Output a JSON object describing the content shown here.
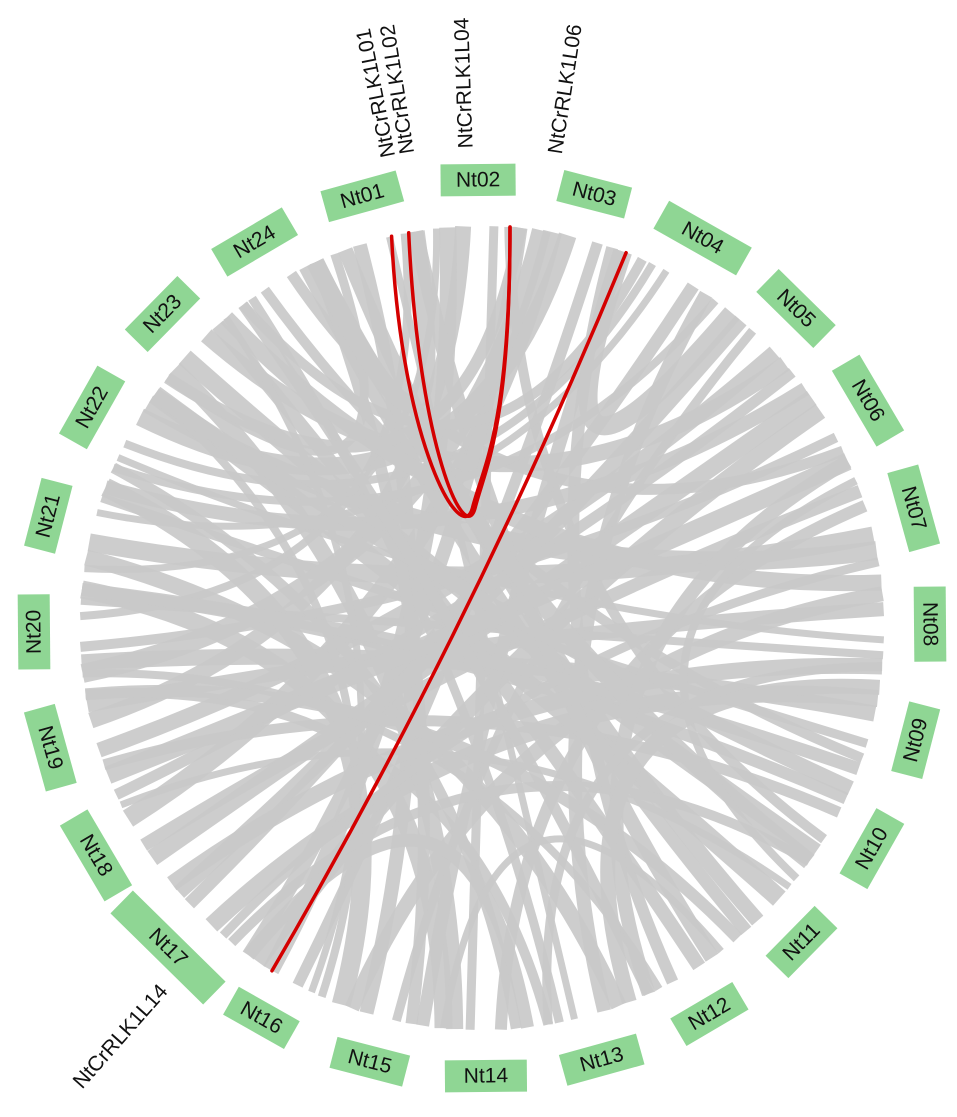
{
  "chart_data": {
    "type": "circos",
    "colors": {
      "chromosome": "#8fd694",
      "collinear_block": "#c9c9c9",
      "highlight_link": "#d40000"
    },
    "chromosomes": [
      "Nt01",
      "Nt02",
      "Nt03",
      "Nt04",
      "Nt05",
      "Nt06",
      "Nt07",
      "Nt08",
      "Nt09",
      "Nt10",
      "Nt11",
      "Nt12",
      "Nt13",
      "Nt14",
      "Nt15",
      "Nt16",
      "Nt17",
      "Nt18",
      "Nt19",
      "Nt20",
      "Nt21",
      "Nt22",
      "Nt23",
      "Nt24"
    ],
    "gene_labels": [
      {
        "text": "NtCrRLK1L01",
        "chromosome": "Nt01"
      },
      {
        "text": "NtCrRLK1L02",
        "chromosome": "Nt01"
      },
      {
        "text": "NtCrRLK1L04",
        "chromosome": "Nt02"
      },
      {
        "text": "NtCrRLK1L06",
        "chromosome": "Nt03"
      },
      {
        "text": "NtCrRLK1L14",
        "chromosome": "Nt17"
      }
    ],
    "highlight_links": [
      {
        "from": "NtCrRLK1L01",
        "to": "NtCrRLK1L04"
      },
      {
        "from": "NtCrRLK1L02",
        "to": "NtCrRLK1L04"
      },
      {
        "from": "NtCrRLK1L06",
        "to": "NtCrRLK1L14"
      }
    ],
    "collinear_blocks": [
      [
        "Nt01",
        "Nt13"
      ],
      [
        "Nt01",
        "Nt15"
      ],
      [
        "Nt01",
        "Nt20"
      ],
      [
        "Nt01",
        "Nt11"
      ],
      [
        "Nt02",
        "Nt14"
      ],
      [
        "Nt02",
        "Nt19"
      ],
      [
        "Nt02",
        "Nt10"
      ],
      [
        "Nt02",
        "Nt16"
      ],
      [
        "Nt03",
        "Nt16"
      ],
      [
        "Nt03",
        "Nt22"
      ],
      [
        "Nt03",
        "Nt12"
      ],
      [
        "Nt03",
        "Nt18"
      ],
      [
        "Nt04",
        "Nt17"
      ],
      [
        "Nt04",
        "Nt21"
      ],
      [
        "Nt04",
        "Nt13"
      ],
      [
        "Nt04",
        "Nt22"
      ],
      [
        "Nt05",
        "Nt19"
      ],
      [
        "Nt05",
        "Nt15"
      ],
      [
        "Nt05",
        "Nt23"
      ],
      [
        "Nt06",
        "Nt20"
      ],
      [
        "Nt06",
        "Nt16"
      ],
      [
        "Nt06",
        "Nt24"
      ],
      [
        "Nt07",
        "Nt21"
      ],
      [
        "Nt07",
        "Nt14"
      ],
      [
        "Nt07",
        "Nt22"
      ],
      [
        "Nt07",
        "Nt18"
      ],
      [
        "Nt08",
        "Nt22"
      ],
      [
        "Nt08",
        "Nt19"
      ],
      [
        "Nt08",
        "Nt20"
      ],
      [
        "Nt08",
        "Nt15"
      ],
      [
        "Nt09",
        "Nt21"
      ],
      [
        "Nt09",
        "Nt20"
      ],
      [
        "Nt09",
        "Nt24"
      ],
      [
        "Nt09",
        "Nt17"
      ],
      [
        "Nt10",
        "Nt19"
      ],
      [
        "Nt10",
        "Nt23"
      ],
      [
        "Nt10",
        "Nt20"
      ],
      [
        "Nt11",
        "Nt22"
      ],
      [
        "Nt11",
        "Nt24"
      ],
      [
        "Nt11",
        "Nt18"
      ],
      [
        "Nt12",
        "Nt23"
      ],
      [
        "Nt12",
        "Nt20"
      ],
      [
        "Nt12",
        "Nt01"
      ],
      [
        "Nt13",
        "Nt24"
      ],
      [
        "Nt13",
        "Nt21"
      ],
      [
        "Nt13",
        "Nt19"
      ],
      [
        "Nt14",
        "Nt23"
      ],
      [
        "Nt14",
        "Nt22"
      ],
      [
        "Nt14",
        "Nt20"
      ],
      [
        "Nt15",
        "Nt24"
      ],
      [
        "Nt15",
        "Nt21"
      ],
      [
        "Nt15",
        "Nt03"
      ],
      [
        "Nt16",
        "Nt23"
      ],
      [
        "Nt16",
        "Nt02"
      ],
      [
        "Nt16",
        "Nt22"
      ],
      [
        "Nt17",
        "Nt05"
      ],
      [
        "Nt17",
        "Nt07"
      ],
      [
        "Nt17",
        "Nt08"
      ],
      [
        "Nt17",
        "Nt10"
      ],
      [
        "Nt18",
        "Nt06"
      ],
      [
        "Nt18",
        "Nt05"
      ],
      [
        "Nt19",
        "Nt06"
      ],
      [
        "Nt19",
        "Nt11"
      ],
      [
        "Nt20",
        "Nt03"
      ],
      [
        "Nt20",
        "Nt09"
      ],
      [
        "Nt21",
        "Nt02"
      ],
      [
        "Nt21",
        "Nt06"
      ],
      [
        "Nt22",
        "Nt04"
      ],
      [
        "Nt22",
        "Nt10"
      ],
      [
        "Nt23",
        "Nt01"
      ],
      [
        "Nt23",
        "Nt08"
      ],
      [
        "Nt24",
        "Nt04"
      ],
      [
        "Nt24",
        "Nt10"
      ],
      [
        "Nt24",
        "Nt12"
      ],
      [
        "Nt01",
        "Nt24"
      ],
      [
        "Nt02",
        "Nt23"
      ],
      [
        "Nt03",
        "Nt05"
      ],
      [
        "Nt14",
        "Nt16"
      ],
      [
        "Nt12",
        "Nt14"
      ],
      [
        "Nt06",
        "Nt12"
      ],
      [
        "Nt07",
        "Nt11"
      ],
      [
        "Nt09",
        "Nt13"
      ],
      [
        "Nt08",
        "Nt13"
      ]
    ]
  }
}
